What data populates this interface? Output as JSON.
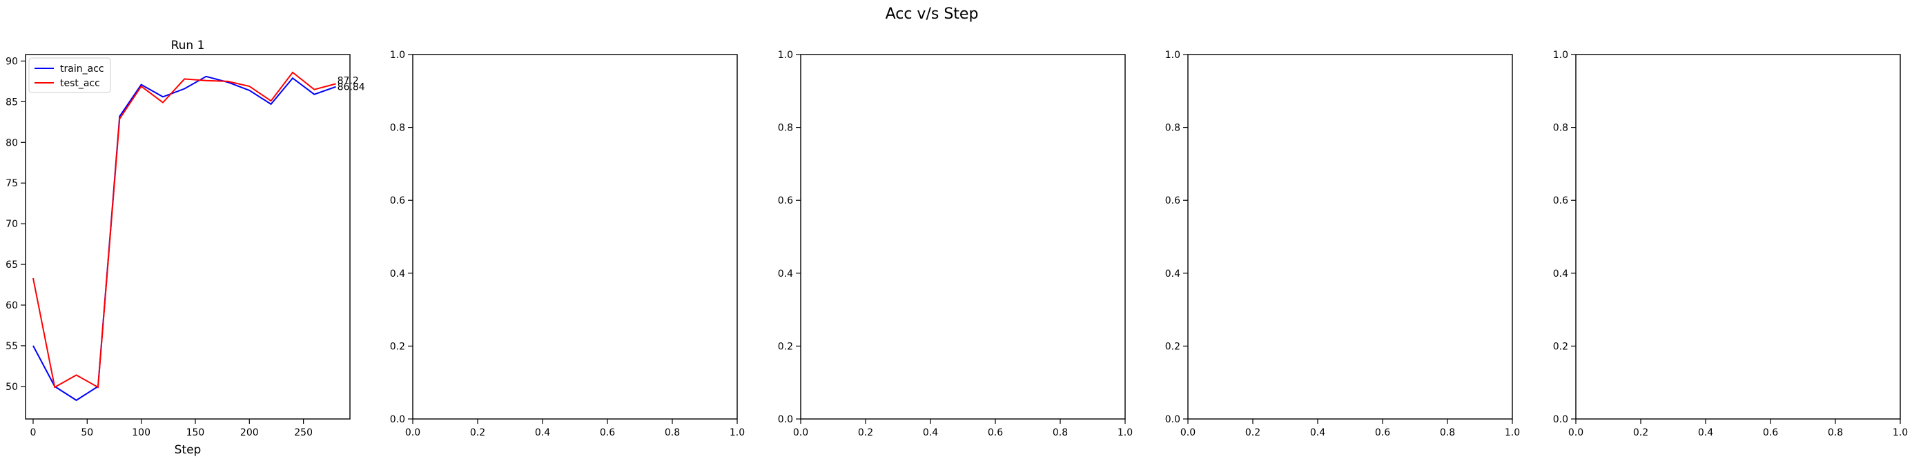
{
  "suptitle": "Acc v/s Step",
  "colors": {
    "train": "#0000ff",
    "test": "#ff0000",
    "axis": "#000000"
  },
  "chart_data": [
    {
      "type": "line",
      "title": "Run 1",
      "xlabel": "Step",
      "ylabel": "",
      "xlim": [
        -7,
        293
      ],
      "ylim": [
        46,
        90.8
      ],
      "xticks": [
        0,
        50,
        100,
        150,
        200,
        250
      ],
      "yticks": [
        50,
        55,
        60,
        65,
        70,
        75,
        80,
        85,
        90
      ],
      "legend_position": "upper-left",
      "x": [
        0,
        20,
        40,
        60,
        80,
        100,
        120,
        140,
        160,
        180,
        200,
        220,
        240,
        260,
        280
      ],
      "series": [
        {
          "name": "train_acc",
          "color": "#0000ff",
          "values": [
            55.0,
            50.0,
            48.3,
            50.0,
            83.2,
            87.1,
            85.6,
            86.6,
            88.1,
            87.4,
            86.4,
            84.7,
            87.9,
            85.9,
            86.84
          ]
        },
        {
          "name": "test_acc",
          "color": "#ff0000",
          "values": [
            63.3,
            49.9,
            51.4,
            49.9,
            82.9,
            86.9,
            84.9,
            87.8,
            87.6,
            87.5,
            86.9,
            85.1,
            88.6,
            86.5,
            87.2
          ]
        }
      ],
      "annotations": [
        {
          "text": "87.2",
          "x": 280,
          "y": 87.2
        },
        {
          "text": "86.84",
          "x": 280,
          "y": 86.84
        }
      ]
    },
    {
      "type": "line",
      "title": "",
      "xlim": [
        0,
        1
      ],
      "ylim": [
        0,
        1
      ],
      "xticks": [
        "0.0",
        "0.2",
        "0.4",
        "0.6",
        "0.8",
        "1.0"
      ],
      "yticks": [
        "0.0",
        "0.2",
        "0.4",
        "0.6",
        "0.8",
        "1.0"
      ],
      "series": []
    },
    {
      "type": "line",
      "title": "",
      "xlim": [
        0,
        1
      ],
      "ylim": [
        0,
        1
      ],
      "xticks": [
        "0.0",
        "0.2",
        "0.4",
        "0.6",
        "0.8",
        "1.0"
      ],
      "yticks": [
        "0.0",
        "0.2",
        "0.4",
        "0.6",
        "0.8",
        "1.0"
      ],
      "series": []
    },
    {
      "type": "line",
      "title": "",
      "xlim": [
        0,
        1
      ],
      "ylim": [
        0,
        1
      ],
      "xticks": [
        "0.0",
        "0.2",
        "0.4",
        "0.6",
        "0.8",
        "1.0"
      ],
      "yticks": [
        "0.0",
        "0.2",
        "0.4",
        "0.6",
        "0.8",
        "1.0"
      ],
      "series": []
    },
    {
      "type": "line",
      "title": "",
      "xlim": [
        0,
        1
      ],
      "ylim": [
        0,
        1
      ],
      "xticks": [
        "0.0",
        "0.2",
        "0.4",
        "0.6",
        "0.8",
        "1.0"
      ],
      "yticks": [
        "0.0",
        "0.2",
        "0.4",
        "0.6",
        "0.8",
        "1.0"
      ],
      "series": []
    }
  ]
}
